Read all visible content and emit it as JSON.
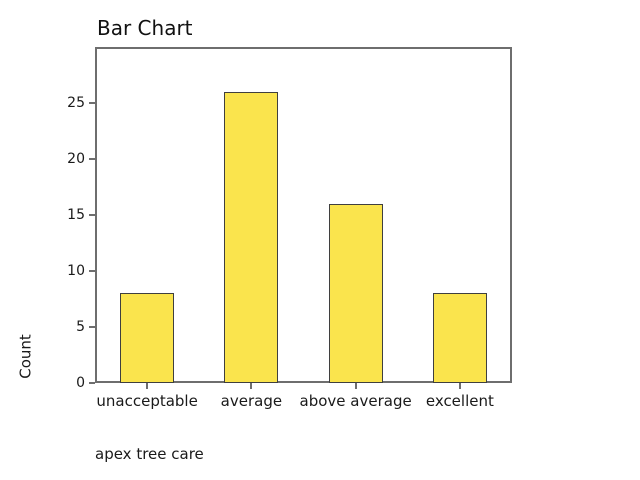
{
  "chart_data": {
    "type": "bar",
    "title": "Bar Chart",
    "categories": [
      "unacceptable",
      "average",
      "above average",
      "excellent"
    ],
    "values": [
      8,
      26,
      16,
      8
    ],
    "xlabel": "apex tree care",
    "ylabel": "Count",
    "ylim": [
      0,
      30
    ],
    "yticks": [
      0,
      5,
      10,
      15,
      20,
      25
    ],
    "grid": false,
    "legend_position": "none",
    "bar_fill_color": "#FAE44D",
    "bar_border_color": "#3F3F3F",
    "axis_color": "#6E6E6E",
    "text_color": "#1A1A1A"
  }
}
